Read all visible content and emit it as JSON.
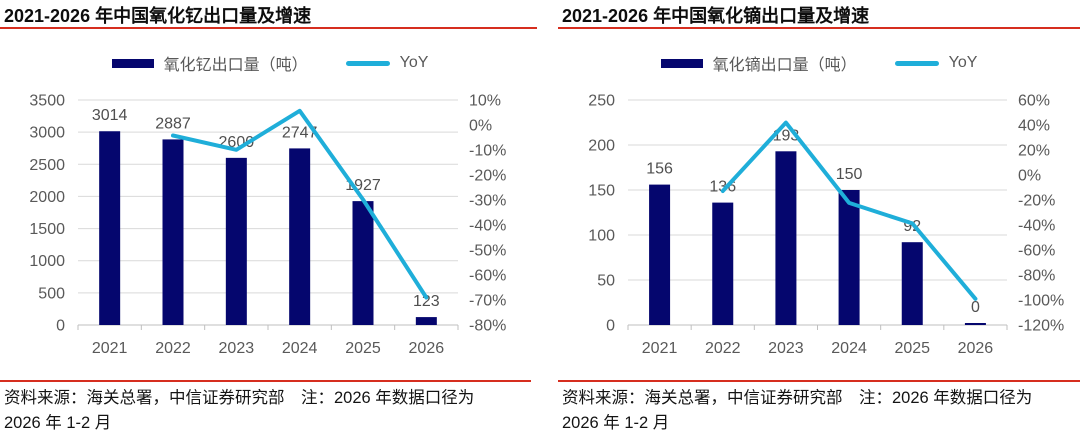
{
  "page": {
    "background": "#ffffff"
  },
  "colors": {
    "bar": "#05066e",
    "line": "#1faed9",
    "accent_red": "#d62e1f",
    "grid": "#d9d9d9",
    "axis_line": "#bfbfbf",
    "axis_text": "#595959",
    "value_label_text": "#4f4f4f",
    "title_text": "#0d0d0d",
    "source_text": "#141414"
  },
  "chart_data": [
    {
      "type": "bar",
      "subtype": "bar+line combo, dual axis",
      "title": "2021-2026 年中国氧化钇出口量及增速",
      "categories": [
        "2021",
        "2022",
        "2023",
        "2024",
        "2025",
        "2026"
      ],
      "series": [
        {
          "name": "氧化钇出口量（吨）",
          "type": "bar",
          "axis": "left",
          "values": [
            3014,
            2887,
            2600,
            2747,
            1927,
            123
          ]
        },
        {
          "name": "YoY",
          "type": "line",
          "axis": "right",
          "values": [
            null,
            -4.2,
            -9.9,
            5.7,
            -29.8,
            -69.0
          ]
        }
      ],
      "left_axis": {
        "min": 0,
        "max": 3500,
        "step": 500,
        "ticks": [
          "3500",
          "3000",
          "2500",
          "2000",
          "1500",
          "1000",
          "500",
          "0"
        ]
      },
      "right_axis": {
        "max": 10,
        "min": -80,
        "step": -10,
        "ticks": [
          "10%",
          "0%",
          "-10%",
          "-20%",
          "-30%",
          "-40%",
          "-50%",
          "-60%",
          "-70%",
          "-80%"
        ]
      },
      "grid": true,
      "legend_position": "top",
      "source_note": "资料来源：海关总署，中信证券研究部　注：2026 年数据口径为 2026 年 1-2 月"
    },
    {
      "type": "bar",
      "subtype": "bar+line combo, dual axis",
      "title": "2021-2026 年中国氧化镝出口量及增速",
      "categories": [
        "2021",
        "2022",
        "2023",
        "2024",
        "2025",
        "2026"
      ],
      "series": [
        {
          "name": "氧化镝出口量（吨）",
          "type": "bar",
          "axis": "left",
          "values": [
            156,
            136,
            193,
            150,
            92,
            0
          ]
        },
        {
          "name": "YoY",
          "type": "line",
          "axis": "right",
          "values": [
            null,
            -12.8,
            41.9,
            -22.3,
            -38.7,
            -99.0
          ]
        }
      ],
      "left_axis": {
        "min": 0,
        "max": 250,
        "step": 50,
        "ticks": [
          "250",
          "200",
          "150",
          "100",
          "50",
          "0"
        ]
      },
      "right_axis": {
        "max": 60,
        "min": -120,
        "step": -20,
        "ticks": [
          "60%",
          "40%",
          "20%",
          "0%",
          "-20%",
          "-40%",
          "-60%",
          "-80%",
          "-100%",
          "-120%"
        ]
      },
      "grid": true,
      "legend_position": "top",
      "source_note": "资料来源：海关总署，中信证券研究部　注：2026 年数据口径为 2026 年 1-2 月"
    }
  ]
}
